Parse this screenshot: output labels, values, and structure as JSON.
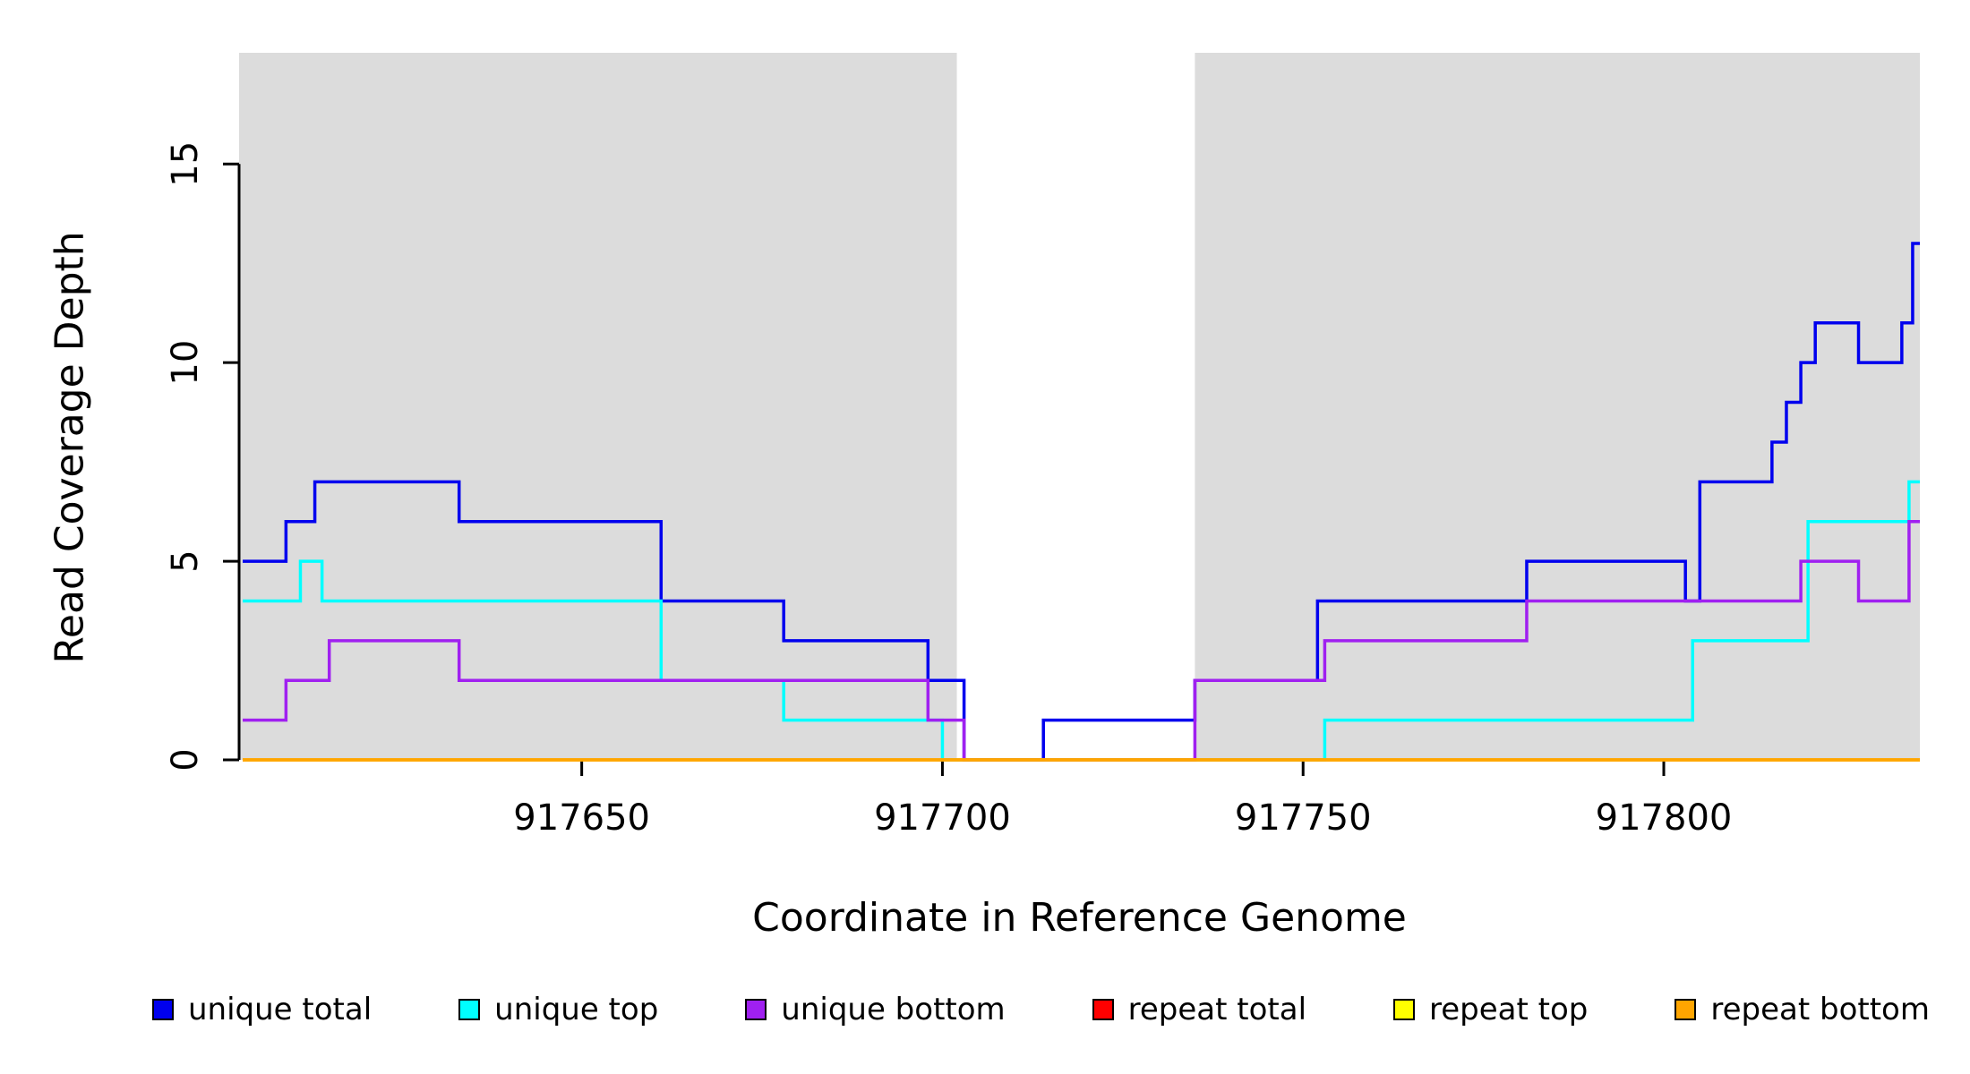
{
  "page": {
    "background": "#FFFFFF"
  },
  "chart_data": {
    "type": "line",
    "subtype": "step-coverage-plot",
    "title": "",
    "xlabel": "Coordinate in Reference Genome",
    "ylabel": "Read Coverage Depth",
    "xlim": [
      917602.5,
      917835.5
    ],
    "ylim": [
      0,
      17.8
    ],
    "x_ticks": [
      917650,
      917700,
      917750,
      917800
    ],
    "y_ticks": [
      0,
      5,
      10,
      15
    ],
    "grid": false,
    "legend_position": "bottom",
    "plot_background": "#FFFFFF",
    "shaded_region_color": "#DCDCDC",
    "shaded_regions": [
      {
        "x_start": 917602.5,
        "x_end": 917702
      },
      {
        "x_start": 917735,
        "x_end": 917835.5
      }
    ],
    "series": [
      {
        "name": "unique total",
        "color": "#0000EE",
        "steps": [
          [
            917603,
            5
          ],
          [
            917609,
            6
          ],
          [
            917613,
            7
          ],
          [
            917633,
            6
          ],
          [
            917661,
            4
          ],
          [
            917678,
            3
          ],
          [
            917698,
            2
          ],
          [
            917703,
            0
          ],
          [
            917714,
            1
          ],
          [
            917735,
            2
          ],
          [
            917752,
            4
          ],
          [
            917781,
            5
          ],
          [
            917803,
            4
          ],
          [
            917805,
            7
          ],
          [
            917815,
            8
          ],
          [
            917817,
            9
          ],
          [
            917819,
            10
          ],
          [
            917821,
            11
          ],
          [
            917827,
            10
          ],
          [
            917833,
            11
          ],
          [
            917834.5,
            13
          ]
        ]
      },
      {
        "name": "unique top",
        "color": "#00FFFF",
        "steps": [
          [
            917603,
            4
          ],
          [
            917611,
            5
          ],
          [
            917614,
            4
          ],
          [
            917661,
            2
          ],
          [
            917678,
            1
          ],
          [
            917700,
            0
          ],
          [
            917753,
            1
          ],
          [
            917804,
            3
          ],
          [
            917820,
            6
          ],
          [
            917834,
            7
          ]
        ]
      },
      {
        "name": "unique bottom",
        "color": "#A020F0",
        "steps": [
          [
            917603,
            1
          ],
          [
            917609,
            2
          ],
          [
            917615,
            3
          ],
          [
            917633,
            2
          ],
          [
            917698,
            1
          ],
          [
            917703,
            0
          ],
          [
            917735,
            2
          ],
          [
            917753,
            3
          ],
          [
            917781,
            4
          ],
          [
            917819,
            5
          ],
          [
            917827,
            4
          ],
          [
            917834,
            6
          ]
        ]
      },
      {
        "name": "repeat total",
        "color": "#FF0000",
        "steps": [
          [
            917603,
            0
          ]
        ]
      },
      {
        "name": "repeat top",
        "color": "#FFFF00",
        "steps": [
          [
            917603,
            0
          ]
        ]
      },
      {
        "name": "repeat bottom",
        "color": "#FFA500",
        "steps": [
          [
            917603,
            0
          ]
        ]
      }
    ]
  }
}
